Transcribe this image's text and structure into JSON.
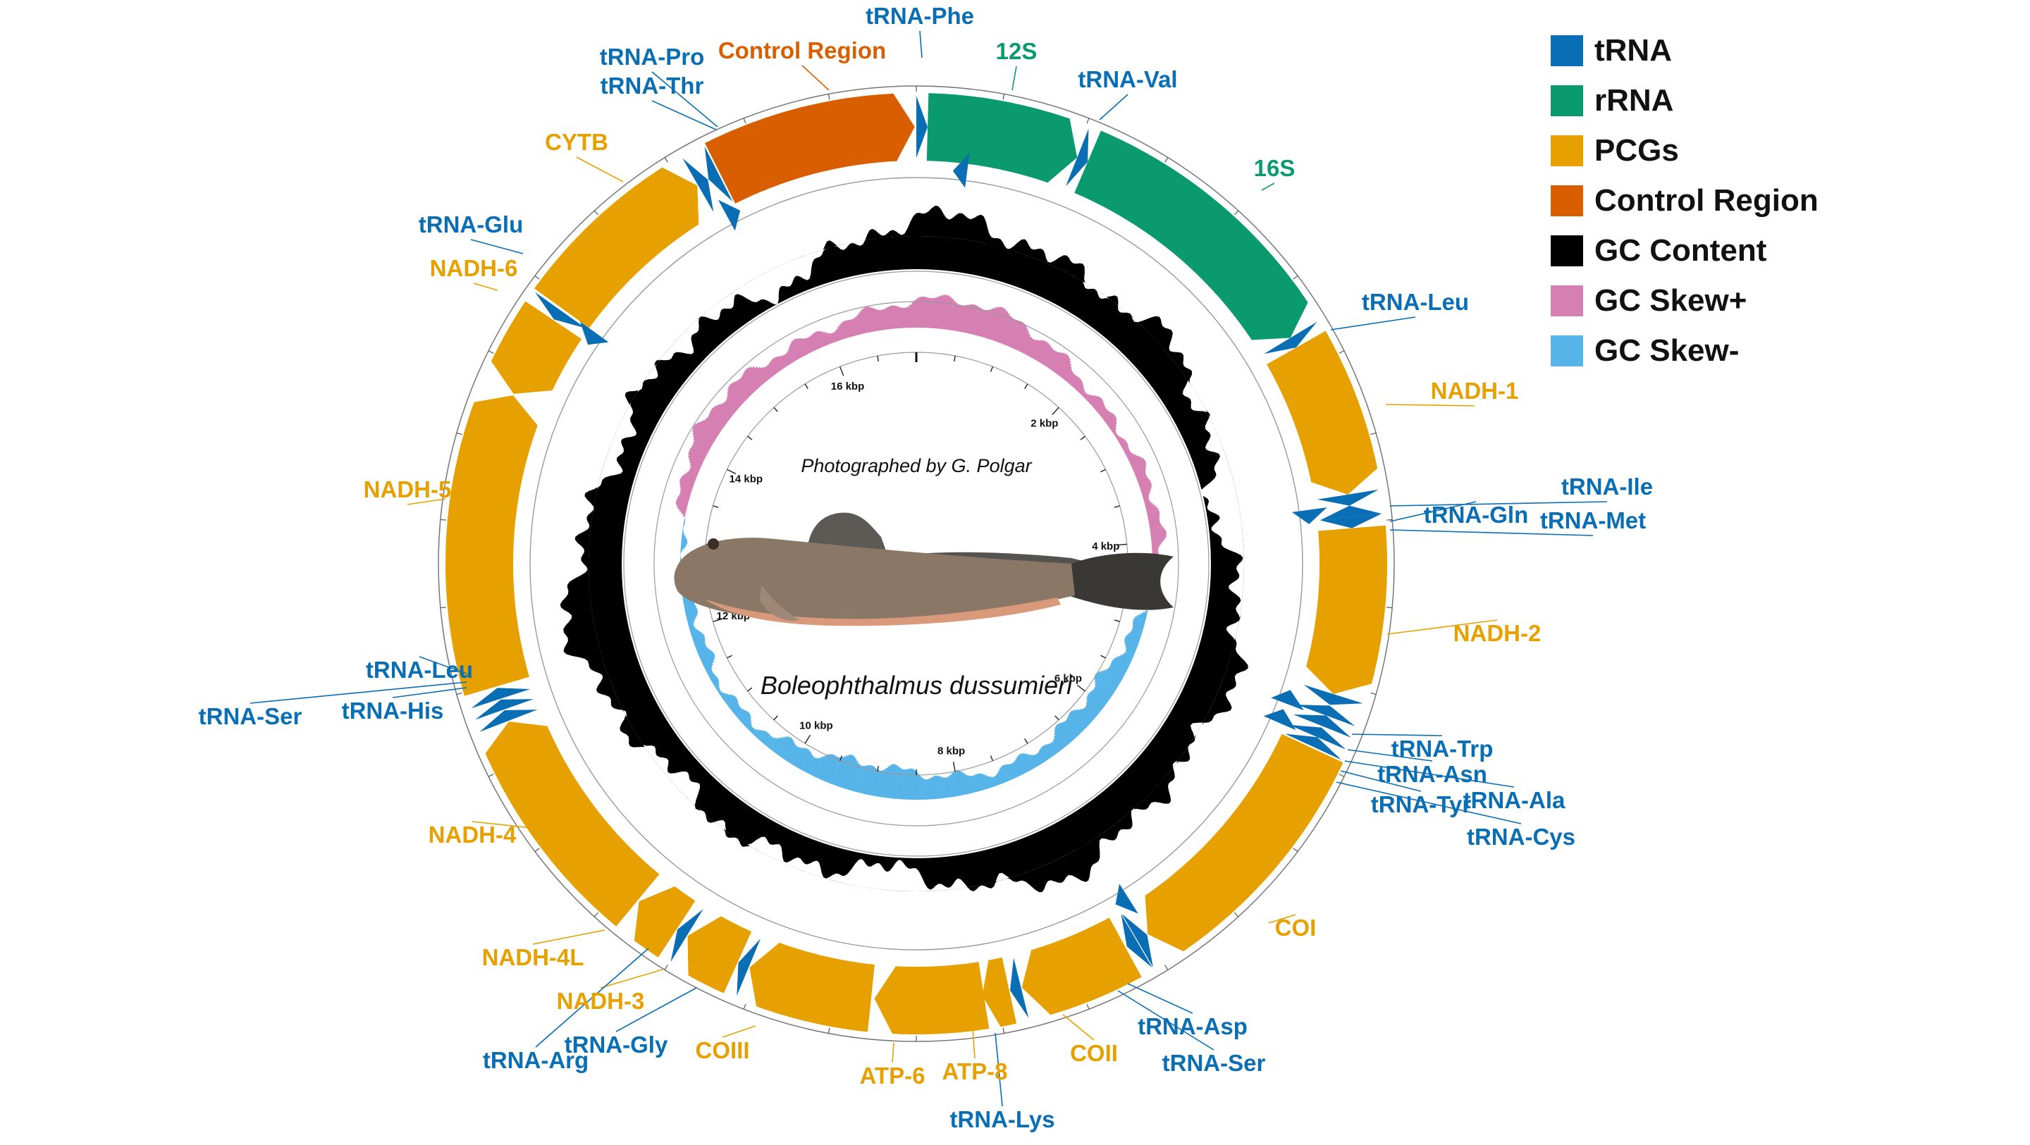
{
  "colors": {
    "trna": "#0a6eb4",
    "rrna": "#0a9a6e",
    "pcg": "#e6a100",
    "control": "#d85e00",
    "gc_content": "#000000",
    "gc_skew_pos": "#d57fb3",
    "gc_skew_neg": "#56b4e9",
    "ring": "#999999"
  },
  "genome": {
    "length_bp": 17000,
    "species": "Boleophthalmus dussumieri",
    "photo_credit": "Photographed by G. Polgar"
  },
  "legend": [
    {
      "label": "tRNA",
      "color": "#0a6eb4"
    },
    {
      "label": "rRNA",
      "color": "#0a9a6e"
    },
    {
      "label": "PCGs",
      "color": "#e6a100"
    },
    {
      "label": "Control Region",
      "color": "#d85e00"
    },
    {
      "label": "GC Content",
      "color": "#000000"
    },
    {
      "label": "GC Skew+",
      "color": "#d57fb3"
    },
    {
      "label": "GC Skew-",
      "color": "#56b4e9"
    }
  ],
  "ticks": [
    {
      "label": "2 kbp",
      "bp": 2000
    },
    {
      "label": "4 kbp",
      "bp": 4000
    },
    {
      "label": "6 kbp",
      "bp": 6000
    },
    {
      "label": "8 kbp",
      "bp": 8000
    },
    {
      "label": "10 kbp",
      "bp": 10000
    },
    {
      "label": "12 kbp",
      "bp": 12000
    },
    {
      "label": "14 kbp",
      "bp": 14000
    },
    {
      "label": "16 kbp",
      "bp": 16000
    }
  ],
  "features": [
    {
      "name": "tRNA-Phe",
      "type": "trna",
      "start": 0,
      "end": 70,
      "strand": 1
    },
    {
      "name": "12S",
      "type": "rrna",
      "start": 70,
      "end": 1020,
      "strand": 1
    },
    {
      "name": "tRNA-Val",
      "type": "trna",
      "start": 1020,
      "end": 1090,
      "strand": 1
    },
    {
      "name": "16S",
      "type": "rrna",
      "start": 1090,
      "end": 2780,
      "strand": 1
    },
    {
      "name": "tRNA-Leu",
      "type": "trna",
      "start": 2780,
      "end": 2850,
      "strand": 1
    },
    {
      "name": "NADH-1",
      "type": "pcg",
      "start": 2850,
      "end": 3820,
      "strand": 1
    },
    {
      "name": "tRNA-Ile",
      "type": "trna",
      "start": 3820,
      "end": 3890,
      "strand": 1
    },
    {
      "name": "tRNA-Gln",
      "type": "trna",
      "start": 3890,
      "end": 3960,
      "strand": -1
    },
    {
      "name": "tRNA-Met",
      "type": "trna",
      "start": 3960,
      "end": 4030,
      "strand": 1
    },
    {
      "name": "NADH-2",
      "type": "pcg",
      "start": 4030,
      "end": 5070,
      "strand": 1
    },
    {
      "name": "tRNA-Trp",
      "type": "trna",
      "start": 5070,
      "end": 5140,
      "strand": 1
    },
    {
      "name": "tRNA-Ala",
      "type": "trna",
      "start": 5145,
      "end": 5210,
      "strand": -1
    },
    {
      "name": "tRNA-Asn",
      "type": "trna",
      "start": 5210,
      "end": 5280,
      "strand": -1
    },
    {
      "name": "tRNA-Cys",
      "type": "trna",
      "start": 5290,
      "end": 5355,
      "strand": -1
    },
    {
      "name": "tRNA-Tyr",
      "type": "trna",
      "start": 5355,
      "end": 5420,
      "strand": -1
    },
    {
      "name": "COI",
      "type": "pcg",
      "start": 5430,
      "end": 6990,
      "strand": 1
    },
    {
      "name": "tRNA-Ser",
      "type": "trna",
      "start": 6995,
      "end": 7065,
      "strand": -1
    },
    {
      "name": "tRNA-Asp",
      "type": "trna",
      "start": 7070,
      "end": 7140,
      "strand": 1
    },
    {
      "name": "COII",
      "type": "pcg",
      "start": 7150,
      "end": 7840,
      "strand": 1
    },
    {
      "name": "tRNA-Lys",
      "type": "trna",
      "start": 7845,
      "end": 7915,
      "strand": 1
    },
    {
      "name": "ATP-8",
      "type": "pcg",
      "start": 7920,
      "end": 8090,
      "strand": 1
    },
    {
      "name": "ATP-6",
      "type": "pcg",
      "start": 8080,
      "end": 8760,
      "strand": 1
    },
    {
      "name": "COIII",
      "type": "pcg",
      "start": 8780,
      "end": 9560,
      "strand": 1
    },
    {
      "name": "tRNA-Gly",
      "type": "trna",
      "start": 9565,
      "end": 9635,
      "strand": 1
    },
    {
      "name": "NADH-3",
      "type": "pcg",
      "start": 9640,
      "end": 9990,
      "strand": 1
    },
    {
      "name": "tRNA-Arg",
      "type": "trna",
      "start": 9995,
      "end": 10065,
      "strand": 1
    },
    {
      "name": "NADH-4L",
      "type": "pcg",
      "start": 10070,
      "end": 10360,
      "strand": 1
    },
    {
      "name": "NADH-4",
      "type": "pcg",
      "start": 10370,
      "end": 11750,
      "strand": 1
    },
    {
      "name": "tRNA-His",
      "type": "trna",
      "start": 11755,
      "end": 11825,
      "strand": 1
    },
    {
      "name": "tRNA-Ser",
      "type": "trna",
      "start": 11830,
      "end": 11895,
      "strand": 1
    },
    {
      "name": "tRNA-Leu",
      "type": "trna",
      "start": 11900,
      "end": 11970,
      "strand": 1
    },
    {
      "name": "NADH-5",
      "type": "pcg",
      "start": 11980,
      "end": 13820,
      "strand": 1
    },
    {
      "name": "NADH-6",
      "type": "pcg",
      "start": 13830,
      "end": 14350,
      "strand": -1
    },
    {
      "name": "tRNA-Glu",
      "type": "trna",
      "start": 14355,
      "end": 14425,
      "strand": -1
    },
    {
      "name": "CYTB",
      "type": "pcg",
      "start": 14440,
      "end": 15580,
      "strand": 1
    },
    {
      "name": "tRNA-Thr",
      "type": "trna",
      "start": 15585,
      "end": 15655,
      "strand": 1
    },
    {
      "name": "tRNA-Pro",
      "type": "trna",
      "start": 15660,
      "end": 15730,
      "strand": -1
    },
    {
      "name": "Control Region",
      "type": "control",
      "start": 15740,
      "end": 16990,
      "strand": 1
    }
  ],
  "labels": [
    {
      "text": "tRNA-Phe",
      "color": "#0a6eb4"
    },
    {
      "text": "12S",
      "color": "#0a9a6e"
    },
    {
      "text": "tRNA-Val",
      "color": "#0a6eb4"
    },
    {
      "text": "16S",
      "color": "#0a9a6e"
    },
    {
      "text": "tRNA-Leu",
      "color": "#0a6eb4"
    },
    {
      "text": "NADH-1",
      "color": "#e6a100"
    },
    {
      "text": "tRNA-Ile",
      "color": "#0a6eb4"
    },
    {
      "text": "tRNA-Gln",
      "color": "#0a6eb4"
    },
    {
      "text": "tRNA-Met",
      "color": "#0a6eb4"
    },
    {
      "text": "NADH-2",
      "color": "#e6a100"
    },
    {
      "text": "tRNA-Trp",
      "color": "#0a6eb4"
    },
    {
      "text": "tRNA-Asn",
      "color": "#0a6eb4"
    },
    {
      "text": "tRNA-Ala",
      "color": "#0a6eb4"
    },
    {
      "text": "tRNA-Tyr",
      "color": "#0a6eb4"
    },
    {
      "text": "tRNA-Cys",
      "color": "#0a6eb4"
    },
    {
      "text": "COI",
      "color": "#e6a100"
    },
    {
      "text": "tRNA-Asp",
      "color": "#0a6eb4"
    },
    {
      "text": "tRNA-Ser",
      "color": "#0a6eb4"
    },
    {
      "text": "COII",
      "color": "#e6a100"
    },
    {
      "text": "ATP-8",
      "color": "#e6a100"
    },
    {
      "text": "tRNA-Lys",
      "color": "#0a6eb4"
    },
    {
      "text": "ATP-6",
      "color": "#e6a100"
    },
    {
      "text": "COIII",
      "color": "#e6a100"
    },
    {
      "text": "tRNA-Gly",
      "color": "#0a6eb4"
    },
    {
      "text": "NADH-3",
      "color": "#e6a100"
    },
    {
      "text": "tRNA-Arg",
      "color": "#0a6eb4"
    },
    {
      "text": "NADH-4L",
      "color": "#e6a100"
    },
    {
      "text": "NADH-4",
      "color": "#e6a100"
    },
    {
      "text": "tRNA-Leu",
      "color": "#0a6eb4"
    },
    {
      "text": "tRNA-His",
      "color": "#0a6eb4"
    },
    {
      "text": "tRNA-Ser",
      "color": "#0a6eb4"
    },
    {
      "text": "NADH-5",
      "color": "#e6a100"
    },
    {
      "text": "NADH-6",
      "color": "#e6a100"
    },
    {
      "text": "tRNA-Glu",
      "color": "#0a6eb4"
    },
    {
      "text": "CYTB",
      "color": "#e6a100"
    },
    {
      "text": "tRNA-Pro",
      "color": "#0a6eb4"
    },
    {
      "text": "tRNA-Thr",
      "color": "#0a6eb4"
    },
    {
      "text": "Control Region",
      "color": "#d85e00"
    }
  ]
}
